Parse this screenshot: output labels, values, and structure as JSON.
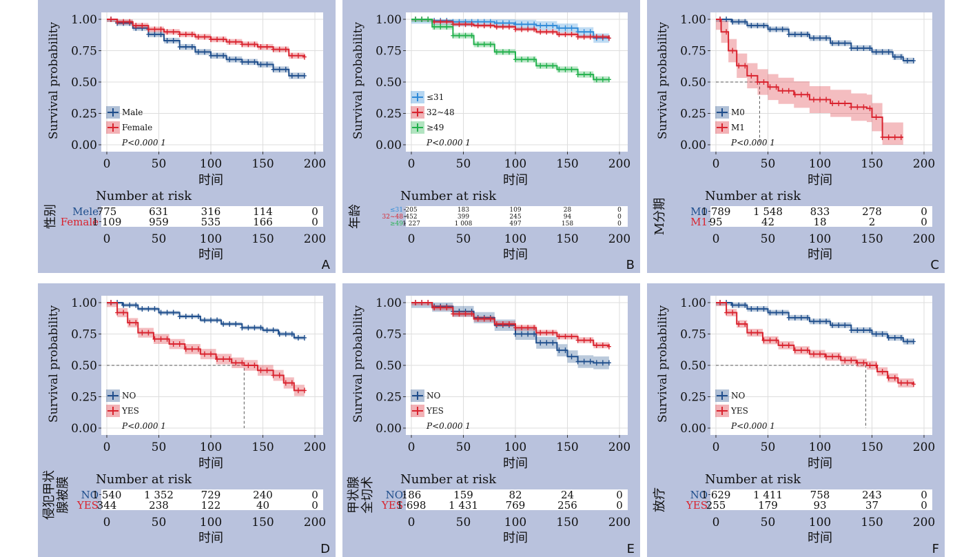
{
  "colors": {
    "panel_bg": "#b9c2dd",
    "plot_bg": "#ffffff",
    "grid": "#dddddd",
    "blue": "#1f4e8c",
    "red": "#d9232e",
    "green": "#22b14c",
    "lightblue": "#2e8ad8"
  },
  "chart_data": [
    {
      "id": "A",
      "type": "line",
      "panel_letter": "A",
      "ylabel": "Survival probability",
      "xlabel": "时间",
      "xlim": [
        0,
        200
      ],
      "ylim": [
        0,
        1
      ],
      "x_ticks": [
        "0",
        "50",
        "100",
        "150",
        "200"
      ],
      "y_ticks": [
        "0.00",
        "0.25",
        "0.50",
        "0.75",
        "1.00"
      ],
      "p_value": "P<0.000 1",
      "series": [
        {
          "name": "Male",
          "risk_label": "Mele",
          "color": "#1f4e8c",
          "x": [
            0,
            10,
            25,
            40,
            55,
            70,
            85,
            100,
            115,
            130,
            145,
            160,
            175,
            190
          ],
          "y": [
            1.0,
            0.97,
            0.93,
            0.88,
            0.83,
            0.78,
            0.74,
            0.71,
            0.68,
            0.66,
            0.64,
            0.6,
            0.55,
            0.55
          ],
          "ci": 0.03
        },
        {
          "name": "Female",
          "risk_label": "Female",
          "color": "#d9232e",
          "x": [
            0,
            10,
            25,
            40,
            55,
            70,
            85,
            100,
            115,
            130,
            145,
            160,
            175,
            190
          ],
          "y": [
            1.0,
            0.98,
            0.95,
            0.92,
            0.9,
            0.88,
            0.86,
            0.84,
            0.82,
            0.8,
            0.78,
            0.76,
            0.71,
            0.7
          ],
          "ci": 0.03
        }
      ],
      "risk_title": "Number at risk",
      "risk_ylabel": "性别",
      "risk_rows": [
        {
          "label": "Mele",
          "color": "#1f4e8c",
          "values": [
            "775",
            "631",
            "316",
            "114",
            "0"
          ]
        },
        {
          "label": "Female",
          "color": "#d9232e",
          "values": [
            "1 109",
            "959",
            "535",
            "166",
            "0"
          ]
        }
      ],
      "median_line": null
    },
    {
      "id": "B",
      "type": "line",
      "panel_letter": "B",
      "ylabel": "Survival probability",
      "xlabel": "时间",
      "xlim": [
        0,
        200
      ],
      "ylim": [
        0,
        1
      ],
      "x_ticks": [
        "0",
        "50",
        "100",
        "150",
        "200"
      ],
      "y_ticks": [
        "0.00",
        "0.25",
        "0.50",
        "0.75",
        "1.00"
      ],
      "p_value": "P<0.000 1",
      "series": [
        {
          "name": "≤31",
          "risk_label": "≤31",
          "color": "#2e8ad8",
          "x": [
            0,
            20,
            40,
            60,
            80,
            100,
            120,
            140,
            160,
            175,
            190
          ],
          "y": [
            1.0,
            0.99,
            0.98,
            0.98,
            0.97,
            0.96,
            0.95,
            0.93,
            0.9,
            0.85,
            0.85
          ],
          "ci": 0.05
        },
        {
          "name": "32~48",
          "risk_label": "32~48",
          "color": "#d9232e",
          "x": [
            0,
            20,
            40,
            60,
            80,
            100,
            120,
            140,
            160,
            175,
            190
          ],
          "y": [
            1.0,
            0.98,
            0.96,
            0.95,
            0.94,
            0.92,
            0.9,
            0.88,
            0.86,
            0.86,
            0.85
          ],
          "ci": 0.02
        },
        {
          "name": "≥49",
          "risk_label": "≥49",
          "color": "#22b14c",
          "x": [
            0,
            20,
            40,
            60,
            80,
            100,
            120,
            140,
            160,
            175,
            190
          ],
          "y": [
            1.0,
            0.94,
            0.87,
            0.8,
            0.74,
            0.68,
            0.63,
            0.6,
            0.56,
            0.52,
            0.52
          ],
          "ci": 0.03
        }
      ],
      "risk_title": "Number at risk",
      "risk_ylabel": "年龄",
      "risk_rows": [
        {
          "label": "≤31",
          "color": "#2e8ad8",
          "values": [
            "205",
            "183",
            "109",
            "28",
            "0"
          ]
        },
        {
          "label": "32~48",
          "color": "#d9232e",
          "values": [
            "452",
            "399",
            "245",
            "94",
            "0"
          ]
        },
        {
          "label": "≥49",
          "color": "#22b14c",
          "values": [
            "1 227",
            "1 008",
            "497",
            "158",
            "0"
          ]
        }
      ],
      "median_line": null
    },
    {
      "id": "C",
      "type": "line",
      "panel_letter": "C",
      "ylabel": "Survival probability",
      "xlabel": "时间",
      "xlim": [
        0,
        200
      ],
      "ylim": [
        0,
        1
      ],
      "x_ticks": [
        "0",
        "50",
        "100",
        "150",
        "200"
      ],
      "y_ticks": [
        "0.00",
        "0.25",
        "0.50",
        "0.75",
        "1.00"
      ],
      "p_value": "P<0.000 1",
      "series": [
        {
          "name": "M0",
          "risk_label": "M0",
          "color": "#1f4e8c",
          "x": [
            0,
            15,
            30,
            50,
            70,
            90,
            110,
            130,
            150,
            170,
            180,
            190
          ],
          "y": [
            1.0,
            0.98,
            0.95,
            0.92,
            0.88,
            0.85,
            0.81,
            0.77,
            0.74,
            0.7,
            0.67,
            0.67
          ],
          "ci": 0.03
        },
        {
          "name": "M1",
          "risk_label": "M1",
          "color": "#d9232e",
          "x": [
            0,
            5,
            12,
            20,
            30,
            40,
            50,
            60,
            75,
            90,
            110,
            130,
            145,
            150,
            160,
            170,
            180
          ],
          "y": [
            1.0,
            0.9,
            0.75,
            0.63,
            0.55,
            0.5,
            0.46,
            0.43,
            0.4,
            0.36,
            0.33,
            0.3,
            0.29,
            0.22,
            0.06,
            0.06,
            0.06
          ],
          "ci": 0.12
        }
      ],
      "risk_title": "Number at risk",
      "risk_ylabel": "M分期",
      "risk_rows": [
        {
          "label": "M0",
          "color": "#1f4e8c",
          "values": [
            "1 789",
            "1 548",
            "833",
            "278",
            "0"
          ]
        },
        {
          "label": "M1",
          "color": "#d9232e",
          "values": [
            "95",
            "42",
            "18",
            "2",
            "0"
          ]
        }
      ],
      "median_line": {
        "x": 42,
        "y": 0.5
      }
    },
    {
      "id": "D",
      "type": "line",
      "panel_letter": "D",
      "ylabel": "Survival probability",
      "xlabel": "时间",
      "xlim": [
        0,
        200
      ],
      "ylim": [
        0,
        1
      ],
      "x_ticks": [
        "0",
        "50",
        "100",
        "150",
        "200"
      ],
      "y_ticks": [
        "0.00",
        "0.25",
        "0.50",
        "0.75",
        "1.00"
      ],
      "p_value": "P<0.000 1",
      "series": [
        {
          "name": "NO",
          "risk_label": "NO",
          "color": "#1f4e8c",
          "x": [
            0,
            15,
            30,
            50,
            70,
            90,
            110,
            130,
            150,
            165,
            180,
            190
          ],
          "y": [
            1.0,
            0.98,
            0.95,
            0.92,
            0.89,
            0.86,
            0.83,
            0.8,
            0.78,
            0.75,
            0.72,
            0.72
          ],
          "ci": 0.02
        },
        {
          "name": "YES",
          "risk_label": "YES",
          "color": "#d9232e",
          "x": [
            0,
            10,
            20,
            30,
            45,
            60,
            75,
            90,
            105,
            120,
            132,
            145,
            160,
            170,
            180,
            190
          ],
          "y": [
            1.0,
            0.92,
            0.84,
            0.76,
            0.71,
            0.67,
            0.63,
            0.59,
            0.55,
            0.52,
            0.5,
            0.46,
            0.42,
            0.36,
            0.3,
            0.3
          ],
          "ci": 0.05
        }
      ],
      "risk_title": "Number at risk",
      "risk_ylabel": "侵犯甲状腺被膜",
      "risk_rows": [
        {
          "label": "NO",
          "color": "#1f4e8c",
          "values": [
            "1 540",
            "1 352",
            "729",
            "240",
            "0"
          ]
        },
        {
          "label": "YES",
          "color": "#d9232e",
          "values": [
            "344",
            "238",
            "122",
            "40",
            "0"
          ]
        }
      ],
      "median_line": {
        "x": 132,
        "y": 0.5
      }
    },
    {
      "id": "E",
      "type": "line",
      "panel_letter": "E",
      "ylabel": "Survival probability",
      "xlabel": "时间",
      "xlim": [
        0,
        200
      ],
      "ylim": [
        0,
        1
      ],
      "x_ticks": [
        "0",
        "50",
        "100",
        "150",
        "200"
      ],
      "y_ticks": [
        "0.00",
        "0.25",
        "0.50",
        "0.75",
        "1.00"
      ],
      "p_value": "P<0.000 1",
      "series": [
        {
          "name": "NO",
          "risk_label": "NO",
          "color": "#1f4e8c",
          "x": [
            0,
            20,
            40,
            60,
            80,
            100,
            120,
            140,
            150,
            160,
            175,
            190
          ],
          "y": [
            1.0,
            0.97,
            0.93,
            0.88,
            0.82,
            0.75,
            0.68,
            0.62,
            0.57,
            0.53,
            0.52,
            0.52
          ],
          "ci": 0.06
        },
        {
          "name": "YES",
          "risk_label": "YES",
          "color": "#d9232e",
          "x": [
            0,
            20,
            40,
            60,
            80,
            100,
            120,
            140,
            160,
            175,
            190
          ],
          "y": [
            1.0,
            0.96,
            0.91,
            0.87,
            0.83,
            0.8,
            0.76,
            0.73,
            0.7,
            0.66,
            0.65
          ],
          "ci": 0.03
        }
      ],
      "risk_title": "Number at risk",
      "risk_ylabel": "甲状腺全切术",
      "risk_rows": [
        {
          "label": "NO",
          "color": "#1f4e8c",
          "values": [
            "186",
            "159",
            "82",
            "24",
            "0"
          ]
        },
        {
          "label": "YES",
          "color": "#d9232e",
          "values": [
            "1 698",
            "1 431",
            "769",
            "256",
            "0"
          ]
        }
      ],
      "median_line": null
    },
    {
      "id": "F",
      "type": "line",
      "panel_letter": "F",
      "ylabel": "Survival probability",
      "xlabel": "时间",
      "xlim": [
        0,
        200
      ],
      "ylim": [
        0,
        1
      ],
      "x_ticks": [
        "0",
        "50",
        "100",
        "150",
        "200"
      ],
      "y_ticks": [
        "0.00",
        "0.25",
        "0.50",
        "0.75",
        "1.00"
      ],
      "p_value": "P<0.000 1",
      "series": [
        {
          "name": "NO",
          "risk_label": "NO",
          "color": "#1f4e8c",
          "x": [
            0,
            15,
            30,
            50,
            70,
            90,
            110,
            130,
            150,
            165,
            180,
            190
          ],
          "y": [
            1.0,
            0.98,
            0.95,
            0.92,
            0.88,
            0.85,
            0.82,
            0.78,
            0.75,
            0.72,
            0.69,
            0.69
          ],
          "ci": 0.03
        },
        {
          "name": "YES",
          "risk_label": "YES",
          "color": "#d9232e",
          "x": [
            0,
            10,
            20,
            30,
            45,
            60,
            75,
            90,
            105,
            120,
            135,
            145,
            155,
            165,
            175,
            190
          ],
          "y": [
            1.0,
            0.92,
            0.83,
            0.76,
            0.7,
            0.66,
            0.62,
            0.59,
            0.57,
            0.54,
            0.52,
            0.5,
            0.45,
            0.4,
            0.36,
            0.35
          ],
          "ci": 0.04
        }
      ],
      "risk_title": "Number at risk",
      "risk_ylabel": "放疗",
      "risk_rows": [
        {
          "label": "NO",
          "color": "#1f4e8c",
          "values": [
            "1 629",
            "1 411",
            "758",
            "243",
            "0"
          ]
        },
        {
          "label": "YES",
          "color": "#d9232e",
          "values": [
            "255",
            "179",
            "93",
            "37",
            "0"
          ]
        }
      ],
      "median_line": {
        "x": 144,
        "y": 0.5
      }
    }
  ]
}
